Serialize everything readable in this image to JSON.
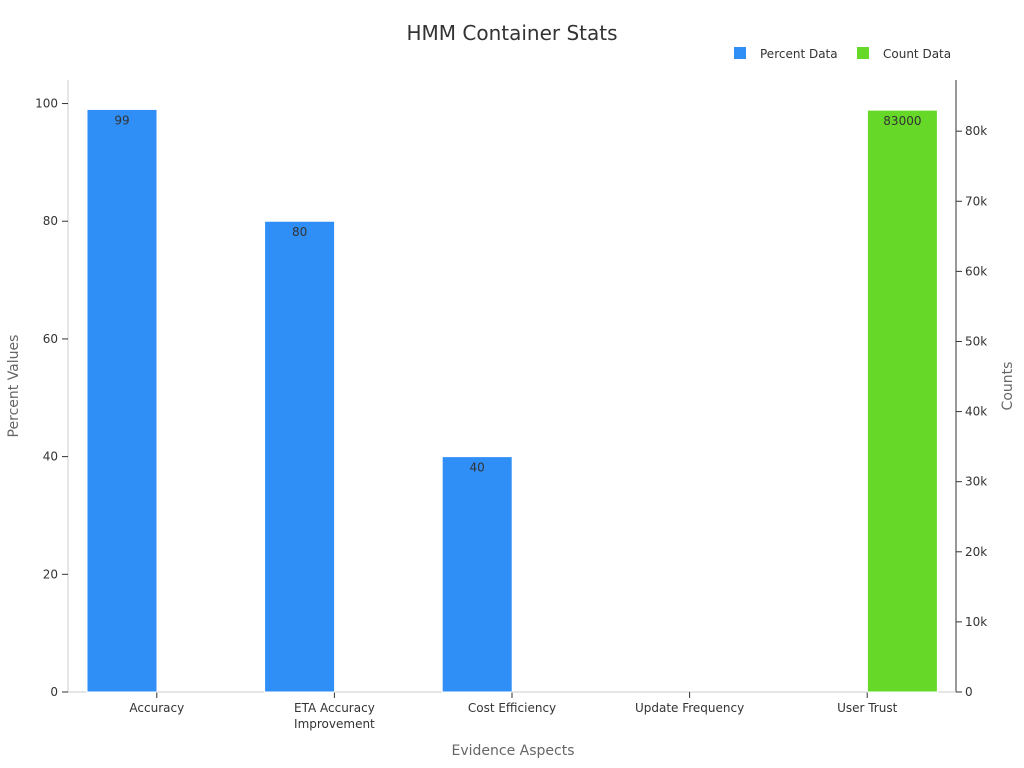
{
  "chart_data": {
    "type": "bar",
    "title": "HMM Container Stats",
    "xlabel": "Evidence Aspects",
    "ylabel": "Percent Values",
    "y2label": "Counts",
    "categories": [
      "Accuracy",
      "ETA Accuracy Improvement",
      "Cost Efficiency",
      "Update Frequency",
      "User Trust"
    ],
    "category_lines": [
      [
        "Accuracy"
      ],
      [
        "ETA Accuracy",
        "Improvement"
      ],
      [
        "Cost Efficiency"
      ],
      [
        "Update Frequency"
      ],
      [
        "User Trust"
      ]
    ],
    "ylim": [
      0,
      104
    ],
    "y_ticks": [
      0,
      20,
      40,
      60,
      80,
      100
    ],
    "y2lim": [
      0,
      87300
    ],
    "y2_ticks": [
      0,
      10000,
      20000,
      30000,
      40000,
      50000,
      60000,
      70000,
      80000
    ],
    "y2_tick_labels": [
      "0",
      "10k",
      "20k",
      "30k",
      "40k",
      "50k",
      "60k",
      "70k",
      "80k"
    ],
    "legend_position": "top-right",
    "series": [
      {
        "name": "Percent Data",
        "axis": "left",
        "color": "#2f8ff7",
        "values": [
          99,
          80,
          40,
          null,
          null
        ]
      },
      {
        "name": "Count Data",
        "axis": "right",
        "color": "#66d828",
        "values": [
          null,
          null,
          null,
          null,
          83000
        ]
      }
    ]
  }
}
